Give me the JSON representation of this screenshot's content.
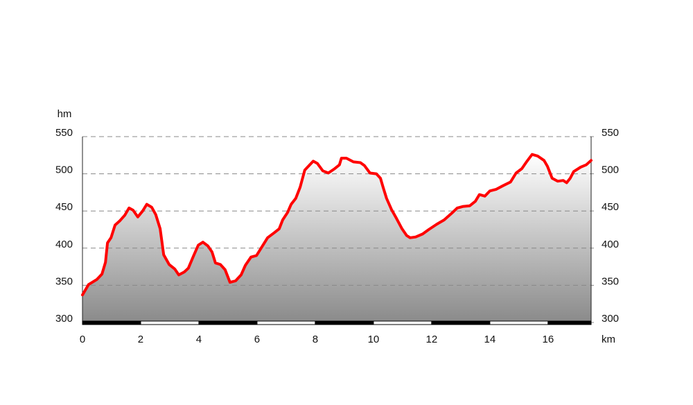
{
  "chart_data": {
    "type": "area",
    "x_label": "km",
    "y_label": "hm",
    "x": [
      0,
      0.21,
      0.5,
      0.67,
      0.79,
      0.86,
      0.98,
      1.12,
      1.29,
      1.45,
      1.6,
      1.74,
      1.9,
      2.07,
      2.21,
      2.38,
      2.52,
      2.67,
      2.79,
      2.98,
      3.17,
      3.31,
      3.5,
      3.64,
      3.81,
      3.98,
      4.14,
      4.31,
      4.45,
      4.57,
      4.74,
      4.9,
      5.07,
      5.26,
      5.45,
      5.6,
      5.79,
      5.98,
      6.17,
      6.36,
      6.6,
      6.76,
      6.88,
      7.05,
      7.17,
      7.33,
      7.48,
      7.64,
      7.81,
      7.93,
      8.07,
      8.26,
      8.45,
      8.67,
      8.83,
      8.9,
      9.07,
      9.31,
      9.55,
      9.69,
      9.88,
      10.1,
      10.24,
      10.33,
      10.45,
      10.62,
      10.79,
      10.98,
      11.14,
      11.26,
      11.45,
      11.69,
      11.9,
      12.17,
      12.43,
      12.69,
      12.88,
      13.07,
      13.31,
      13.5,
      13.64,
      13.83,
      14.0,
      14.21,
      14.45,
      14.71,
      14.9,
      15.1,
      15.26,
      15.45,
      15.64,
      15.86,
      15.98,
      16.14,
      16.33,
      16.52,
      16.64,
      16.76,
      16.88,
      17.12,
      17.31,
      17.48
    ],
    "series": [
      {
        "color": "#ff0000",
        "values": [
          337,
          351,
          358,
          365,
          381,
          407,
          414,
          431,
          437,
          444,
          454,
          451,
          442,
          450,
          459,
          455,
          445,
          426,
          391,
          378,
          372,
          364,
          368,
          373,
          389,
          404,
          408,
          403,
          395,
          380,
          378,
          371,
          354,
          356,
          364,
          377,
          388,
          390,
          402,
          414,
          421,
          426,
          438,
          448,
          459,
          467,
          482,
          505,
          512,
          517,
          514,
          504,
          501,
          507,
          512,
          521,
          521,
          516,
          515,
          511,
          501,
          500,
          494,
          482,
          467,
          452,
          440,
          426,
          417,
          414,
          415,
          419,
          425,
          432,
          438,
          447,
          454,
          456,
          457,
          463,
          472,
          470,
          477,
          479,
          484,
          489,
          501,
          507,
          516,
          526,
          524,
          518,
          510,
          494,
          490,
          491,
          488,
          494,
          503,
          509,
          512,
          518
        ]
      }
    ],
    "xlim": [
      0,
      17.48
    ],
    "xticks": [
      0,
      2,
      4,
      6,
      8,
      10,
      12,
      14,
      16
    ],
    "ylim": [
      300,
      550
    ],
    "yticks": [
      300,
      350,
      400,
      450,
      500,
      550
    ],
    "y2lim": [
      300,
      550
    ],
    "y2ticks": [
      300,
      350,
      400,
      450,
      500,
      550
    ],
    "grid": true
  }
}
